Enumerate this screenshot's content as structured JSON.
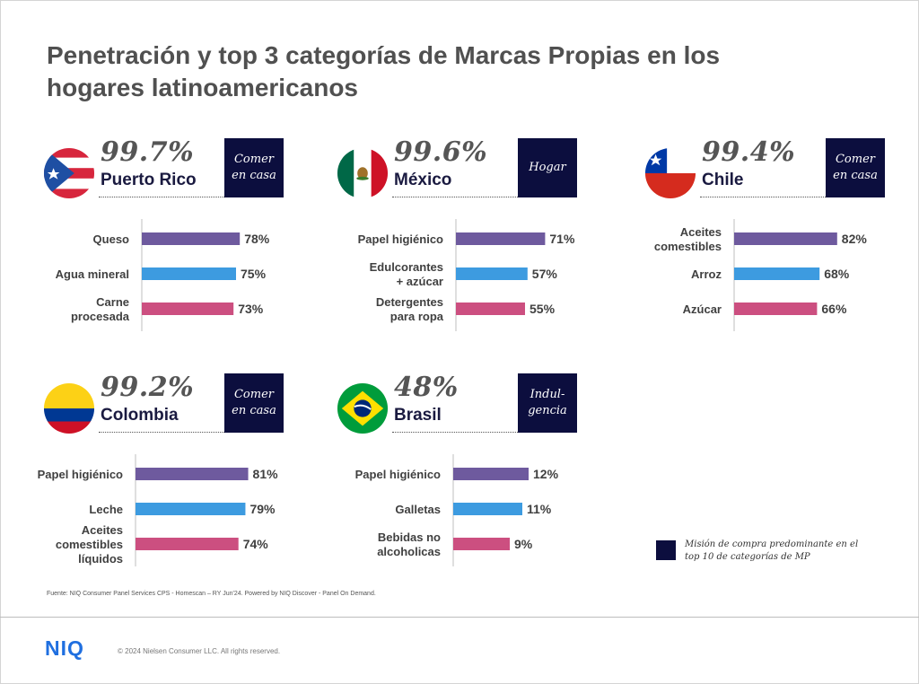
{
  "title": "Penetración y top 3 categorías de Marcas Propias en los hogares latinoamericanos",
  "colors": {
    "bar1": "#6e5a9e",
    "bar2": "#3d9be0",
    "bar3": "#cc4f80",
    "mission_bg": "#0c0e3e"
  },
  "chart_data": [
    {
      "type": "bar",
      "country": "Puerto Rico",
      "penetration": "99.7%",
      "mission": "Comer\nen casa",
      "categories": [
        [
          "Queso"
        ],
        [
          "Agua mineral"
        ],
        [
          "Carne",
          "procesada"
        ]
      ],
      "values": [
        78,
        75,
        73
      ],
      "labels": [
        "78%",
        "75%",
        "73%"
      ]
    },
    {
      "type": "bar",
      "country": "México",
      "penetration": "99.6%",
      "mission": "Hogar",
      "categories": [
        [
          "Papel higiénico"
        ],
        [
          "Edulcorantes",
          "+ azúcar"
        ],
        [
          "Detergentes",
          "para ropa"
        ]
      ],
      "values": [
        71,
        57,
        55
      ],
      "labels": [
        "71%",
        "57%",
        "55%"
      ]
    },
    {
      "type": "bar",
      "country": "Chile",
      "penetration": "99.4%",
      "mission": "Comer\nen casa",
      "categories": [
        [
          "Aceites",
          "comestibles"
        ],
        [
          "Arroz"
        ],
        [
          "Azúcar"
        ]
      ],
      "values": [
        82,
        68,
        66
      ],
      "labels": [
        "82%",
        "68%",
        "66%"
      ]
    },
    {
      "type": "bar",
      "country": "Colombia",
      "penetration": "99.2%",
      "mission": "Comer\nen casa",
      "categories": [
        [
          "Papel higiénico"
        ],
        [
          "Leche"
        ],
        [
          "Aceites",
          "comestibles",
          "líquidos"
        ]
      ],
      "values": [
        81,
        79,
        74
      ],
      "labels": [
        "81%",
        "79%",
        "74%"
      ]
    },
    {
      "type": "bar",
      "country": "Brasil",
      "penetration": "48%",
      "mission": "Indul-\ngencia",
      "categories": [
        [
          "Papel higiénico"
        ],
        [
          "Galletas"
        ],
        [
          "Bebidas no",
          "alcoholicas"
        ]
      ],
      "values": [
        12,
        11,
        9
      ],
      "labels": [
        "12%",
        "11%",
        "9%"
      ]
    }
  ],
  "legend": {
    "text": "Misión de compra predominante en el top 10 de categorías de MP"
  },
  "source": "Fuente: NIQ Consumer Panel Services CPS - Homescan – RY Jun'24. Powered by NIQ Discover - Panel On Demand.",
  "footer": {
    "logo": "NIQ",
    "copyright": "© 2024 Nielsen Consumer LLC. All rights reserved."
  }
}
